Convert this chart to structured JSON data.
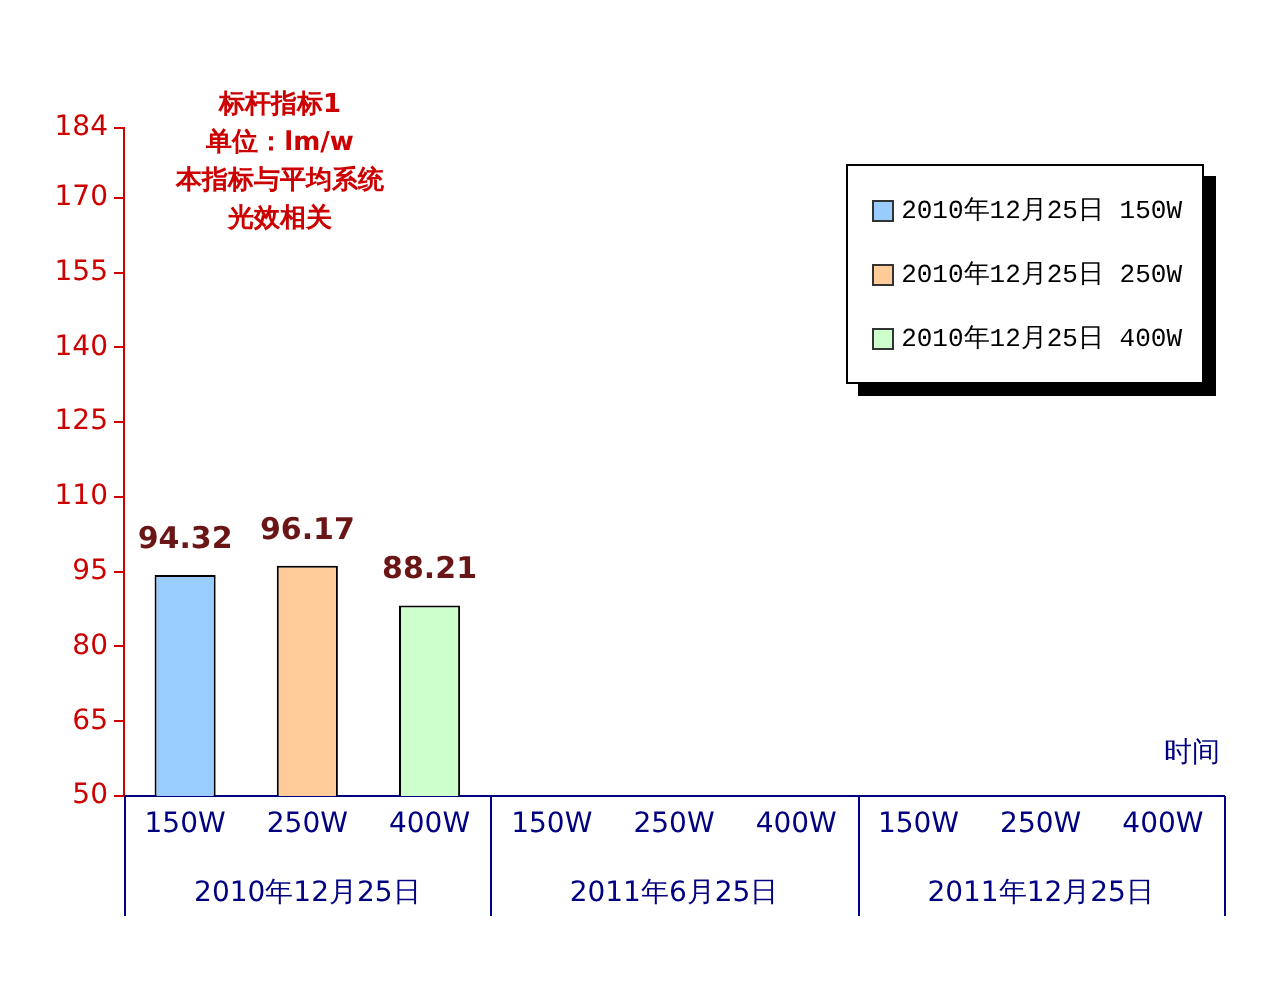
{
  "chart_data": {
    "type": "bar",
    "title": "标杆指标1",
    "subtitle": "单位：lm/w\n本指标与平均系统光效相关",
    "xlabel": "时间",
    "categories": [
      "150W",
      "250W",
      "400W",
      "150W",
      "250W",
      "400W",
      "150W",
      "250W",
      "400W"
    ],
    "annotations": [
      "2010年12月25日",
      "2011年6月25日",
      "2011年12月25日"
    ],
    "series": [
      {
        "name": "2010年12月25日 150W",
        "color": "#99ccff",
        "values": [
          94.32,
          null,
          null,
          null,
          null,
          null,
          null,
          null,
          null
        ]
      },
      {
        "name": "2010年12月25日 250W",
        "color": "#ffcc99",
        "values": [
          null,
          96.17,
          null,
          null,
          null,
          null,
          null,
          null,
          null
        ]
      },
      {
        "name": "2010年12月25日 400W",
        "color": "#ccffcc",
        "values": [
          null,
          null,
          88.21,
          null,
          null,
          null,
          null,
          null,
          null
        ]
      }
    ],
    "ylim": [
      50,
      184
    ],
    "yticks": [
      50,
      65,
      80,
      95,
      110,
      125,
      140,
      155,
      170,
      184
    ],
    "grid": false,
    "legend": "top right",
    "data_labels": true
  }
}
